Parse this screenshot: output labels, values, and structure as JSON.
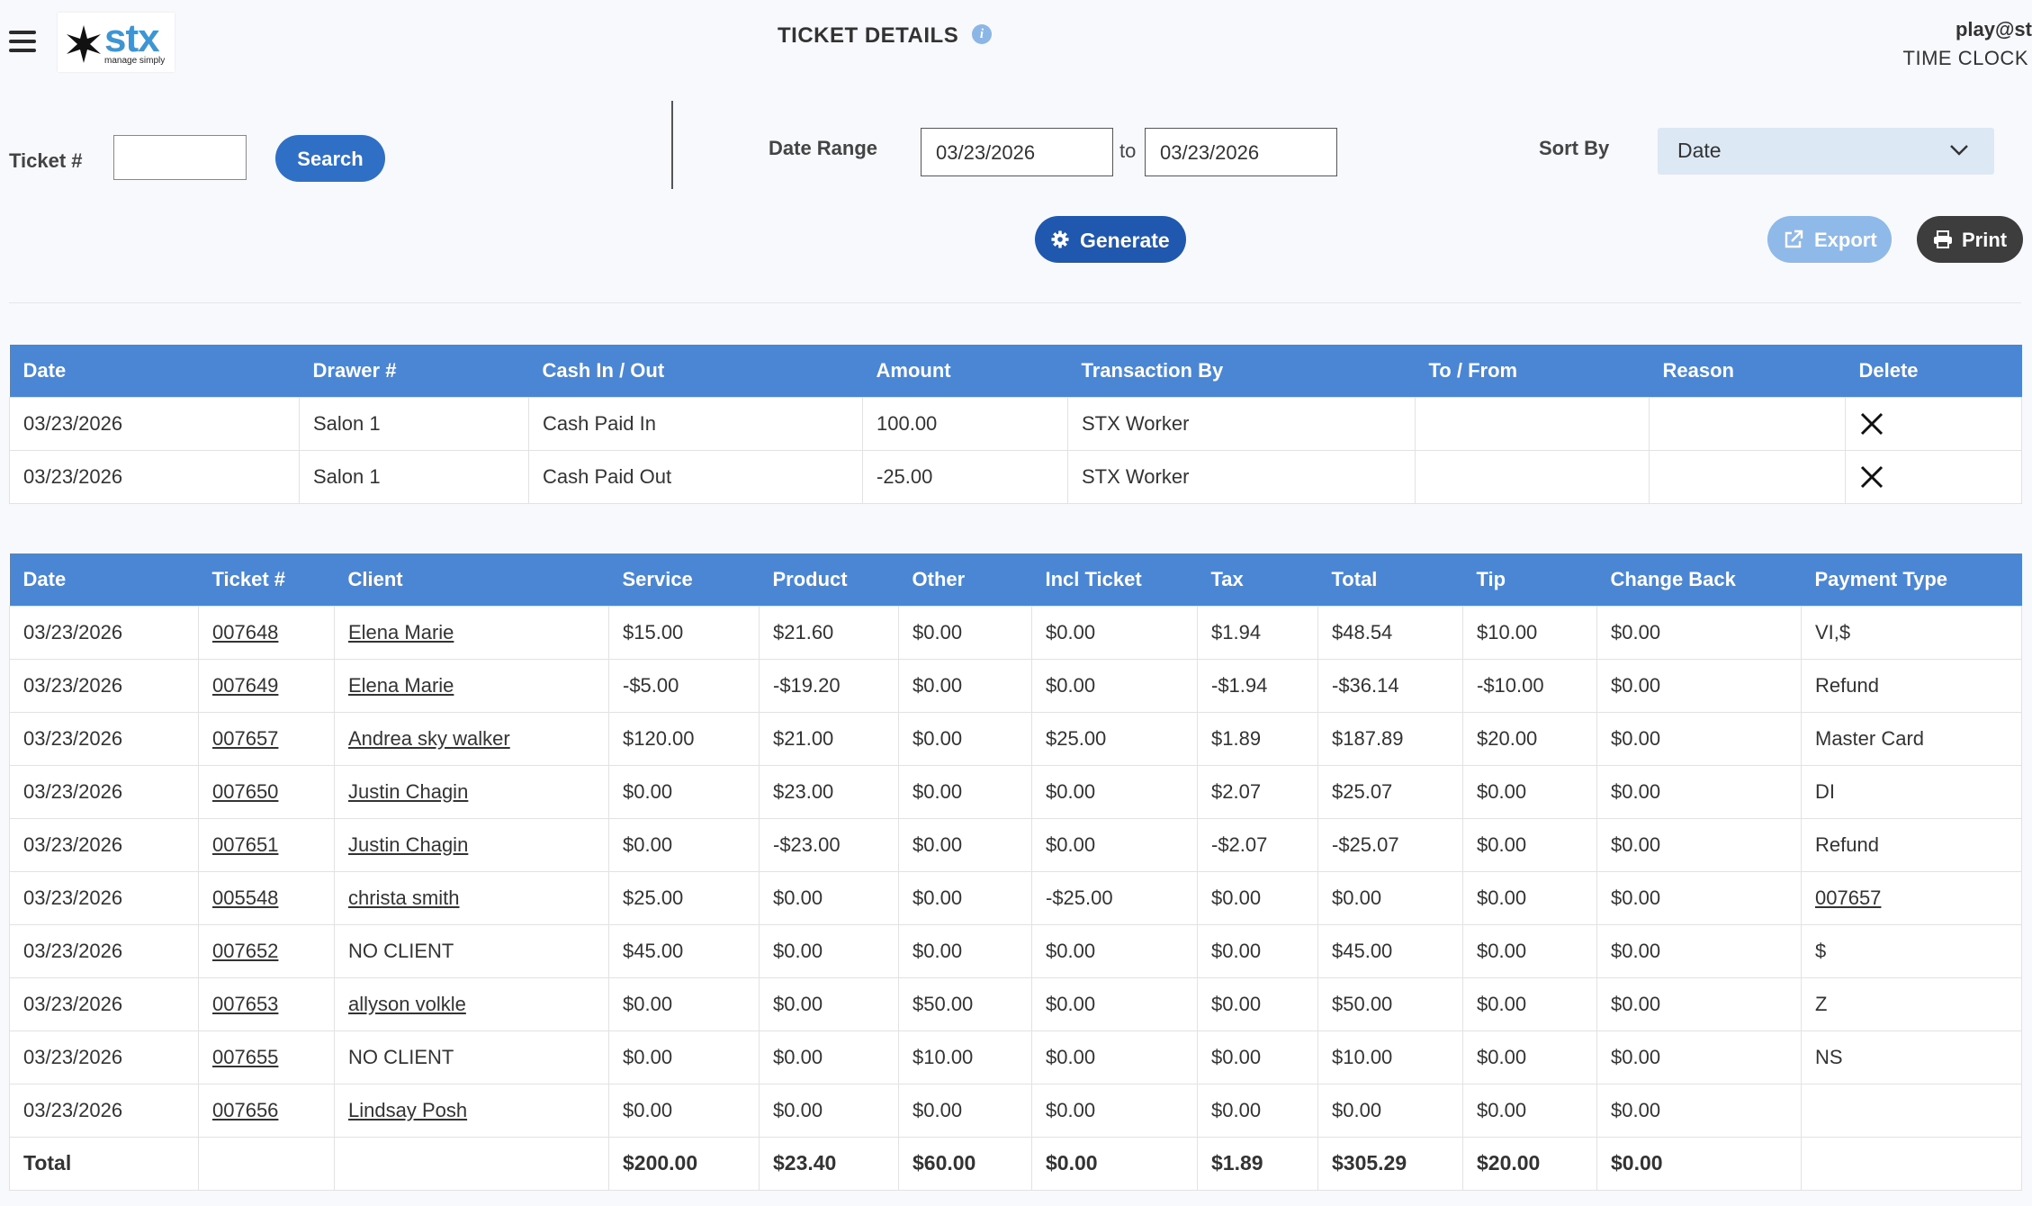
{
  "header": {
    "logo_word": "stx",
    "logo_tagline": "manage simply",
    "title": "TICKET DETAILS",
    "user": "play@st",
    "time_clock": "TIME CLOCK"
  },
  "filters": {
    "ticket_label": "Ticket #",
    "ticket_value": "",
    "search_label": "Search",
    "date_range_label": "Date Range",
    "date_from": "03/23/2026",
    "to_label": "to",
    "date_to": "03/23/2026",
    "sort_label": "Sort By",
    "sort_value": "Date",
    "generate_label": "Generate",
    "export_label": "Export",
    "print_label": "Print"
  },
  "cash_table": {
    "headers": [
      "Date",
      "Drawer #",
      "Cash In / Out",
      "Amount",
      "Transaction By",
      "To / From",
      "Reason",
      "Delete"
    ],
    "rows": [
      {
        "date": "03/23/2026",
        "drawer": "Salon 1",
        "type": "Cash Paid In",
        "amount": "100.00",
        "by": "STX Worker",
        "to_from": "",
        "reason": ""
      },
      {
        "date": "03/23/2026",
        "drawer": "Salon 1",
        "type": "Cash Paid Out",
        "amount": "-25.00",
        "by": "STX Worker",
        "to_from": "",
        "reason": ""
      }
    ]
  },
  "ticket_table": {
    "headers": [
      "Date",
      "Ticket #",
      "Client",
      "Service",
      "Product",
      "Other",
      "Incl Ticket",
      "Tax",
      "Total",
      "Tip",
      "Change Back",
      "Payment Type"
    ],
    "rows": [
      {
        "date": "03/23/2026",
        "ticket": "007648",
        "client": "Elena Marie",
        "client_link": true,
        "service": "$15.00",
        "product": "$21.60",
        "other": "$0.00",
        "incl": "$0.00",
        "tax": "$1.94",
        "total": "$48.54",
        "tip": "$10.00",
        "change": "$0.00",
        "payment": "VI,$",
        "payment_link": false
      },
      {
        "date": "03/23/2026",
        "ticket": "007649",
        "client": "Elena Marie",
        "client_link": true,
        "service": "-$5.00",
        "product": "-$19.20",
        "other": "$0.00",
        "incl": "$0.00",
        "tax": "-$1.94",
        "total": "-$36.14",
        "tip": "-$10.00",
        "change": "$0.00",
        "payment": "Refund",
        "payment_link": false
      },
      {
        "date": "03/23/2026",
        "ticket": "007657",
        "client": "Andrea sky walker",
        "client_link": true,
        "service": "$120.00",
        "product": "$21.00",
        "other": "$0.00",
        "incl": "$25.00",
        "tax": "$1.89",
        "total": "$187.89",
        "tip": "$20.00",
        "change": "$0.00",
        "payment": "Master Card",
        "payment_link": false
      },
      {
        "date": "03/23/2026",
        "ticket": "007650",
        "client": "Justin Chagin",
        "client_link": true,
        "service": "$0.00",
        "product": "$23.00",
        "other": "$0.00",
        "incl": "$0.00",
        "tax": "$2.07",
        "total": "$25.07",
        "tip": "$0.00",
        "change": "$0.00",
        "payment": "DI",
        "payment_link": false
      },
      {
        "date": "03/23/2026",
        "ticket": "007651",
        "client": "Justin Chagin",
        "client_link": true,
        "service": "$0.00",
        "product": "-$23.00",
        "other": "$0.00",
        "incl": "$0.00",
        "tax": "-$2.07",
        "total": "-$25.07",
        "tip": "$0.00",
        "change": "$0.00",
        "payment": "Refund",
        "payment_link": false
      },
      {
        "date": "03/23/2026",
        "ticket": "005548",
        "client": "christa smith",
        "client_link": true,
        "service": "$25.00",
        "product": "$0.00",
        "other": "$0.00",
        "incl": "-$25.00",
        "tax": "$0.00",
        "total": "$0.00",
        "tip": "$0.00",
        "change": "$0.00",
        "payment": "007657",
        "payment_link": true
      },
      {
        "date": "03/23/2026",
        "ticket": "007652",
        "client": "NO CLIENT",
        "client_link": false,
        "service": "$45.00",
        "product": "$0.00",
        "other": "$0.00",
        "incl": "$0.00",
        "tax": "$0.00",
        "total": "$45.00",
        "tip": "$0.00",
        "change": "$0.00",
        "payment": "$",
        "payment_link": false
      },
      {
        "date": "03/23/2026",
        "ticket": "007653",
        "client": "allyson volkle",
        "client_link": true,
        "service": "$0.00",
        "product": "$0.00",
        "other": "$50.00",
        "incl": "$0.00",
        "tax": "$0.00",
        "total": "$50.00",
        "tip": "$0.00",
        "change": "$0.00",
        "payment": "Z",
        "payment_link": false
      },
      {
        "date": "03/23/2026",
        "ticket": "007655",
        "client": "NO CLIENT",
        "client_link": false,
        "service": "$0.00",
        "product": "$0.00",
        "other": "$10.00",
        "incl": "$0.00",
        "tax": "$0.00",
        "total": "$10.00",
        "tip": "$0.00",
        "change": "$0.00",
        "payment": "NS",
        "payment_link": false
      },
      {
        "date": "03/23/2026",
        "ticket": "007656",
        "client": "Lindsay Posh",
        "client_link": true,
        "service": "$0.00",
        "product": "$0.00",
        "other": "$0.00",
        "incl": "$0.00",
        "tax": "$0.00",
        "total": "$0.00",
        "tip": "$0.00",
        "change": "$0.00",
        "payment": "",
        "payment_link": false
      }
    ],
    "totals": {
      "label": "Total",
      "service": "$200.00",
      "product": "$23.40",
      "other": "$60.00",
      "incl": "$0.00",
      "tax": "$1.89",
      "total": "$305.29",
      "tip": "$20.00",
      "change": "$0.00"
    }
  },
  "colors": {
    "header_blue": "#4a86d4",
    "button_blue": "#2f6fc6",
    "generate_blue": "#2058b0",
    "export_light_blue": "#8fb9e9",
    "print_dark": "#3d3d3d",
    "logo_blue": "#3d95d3"
  }
}
